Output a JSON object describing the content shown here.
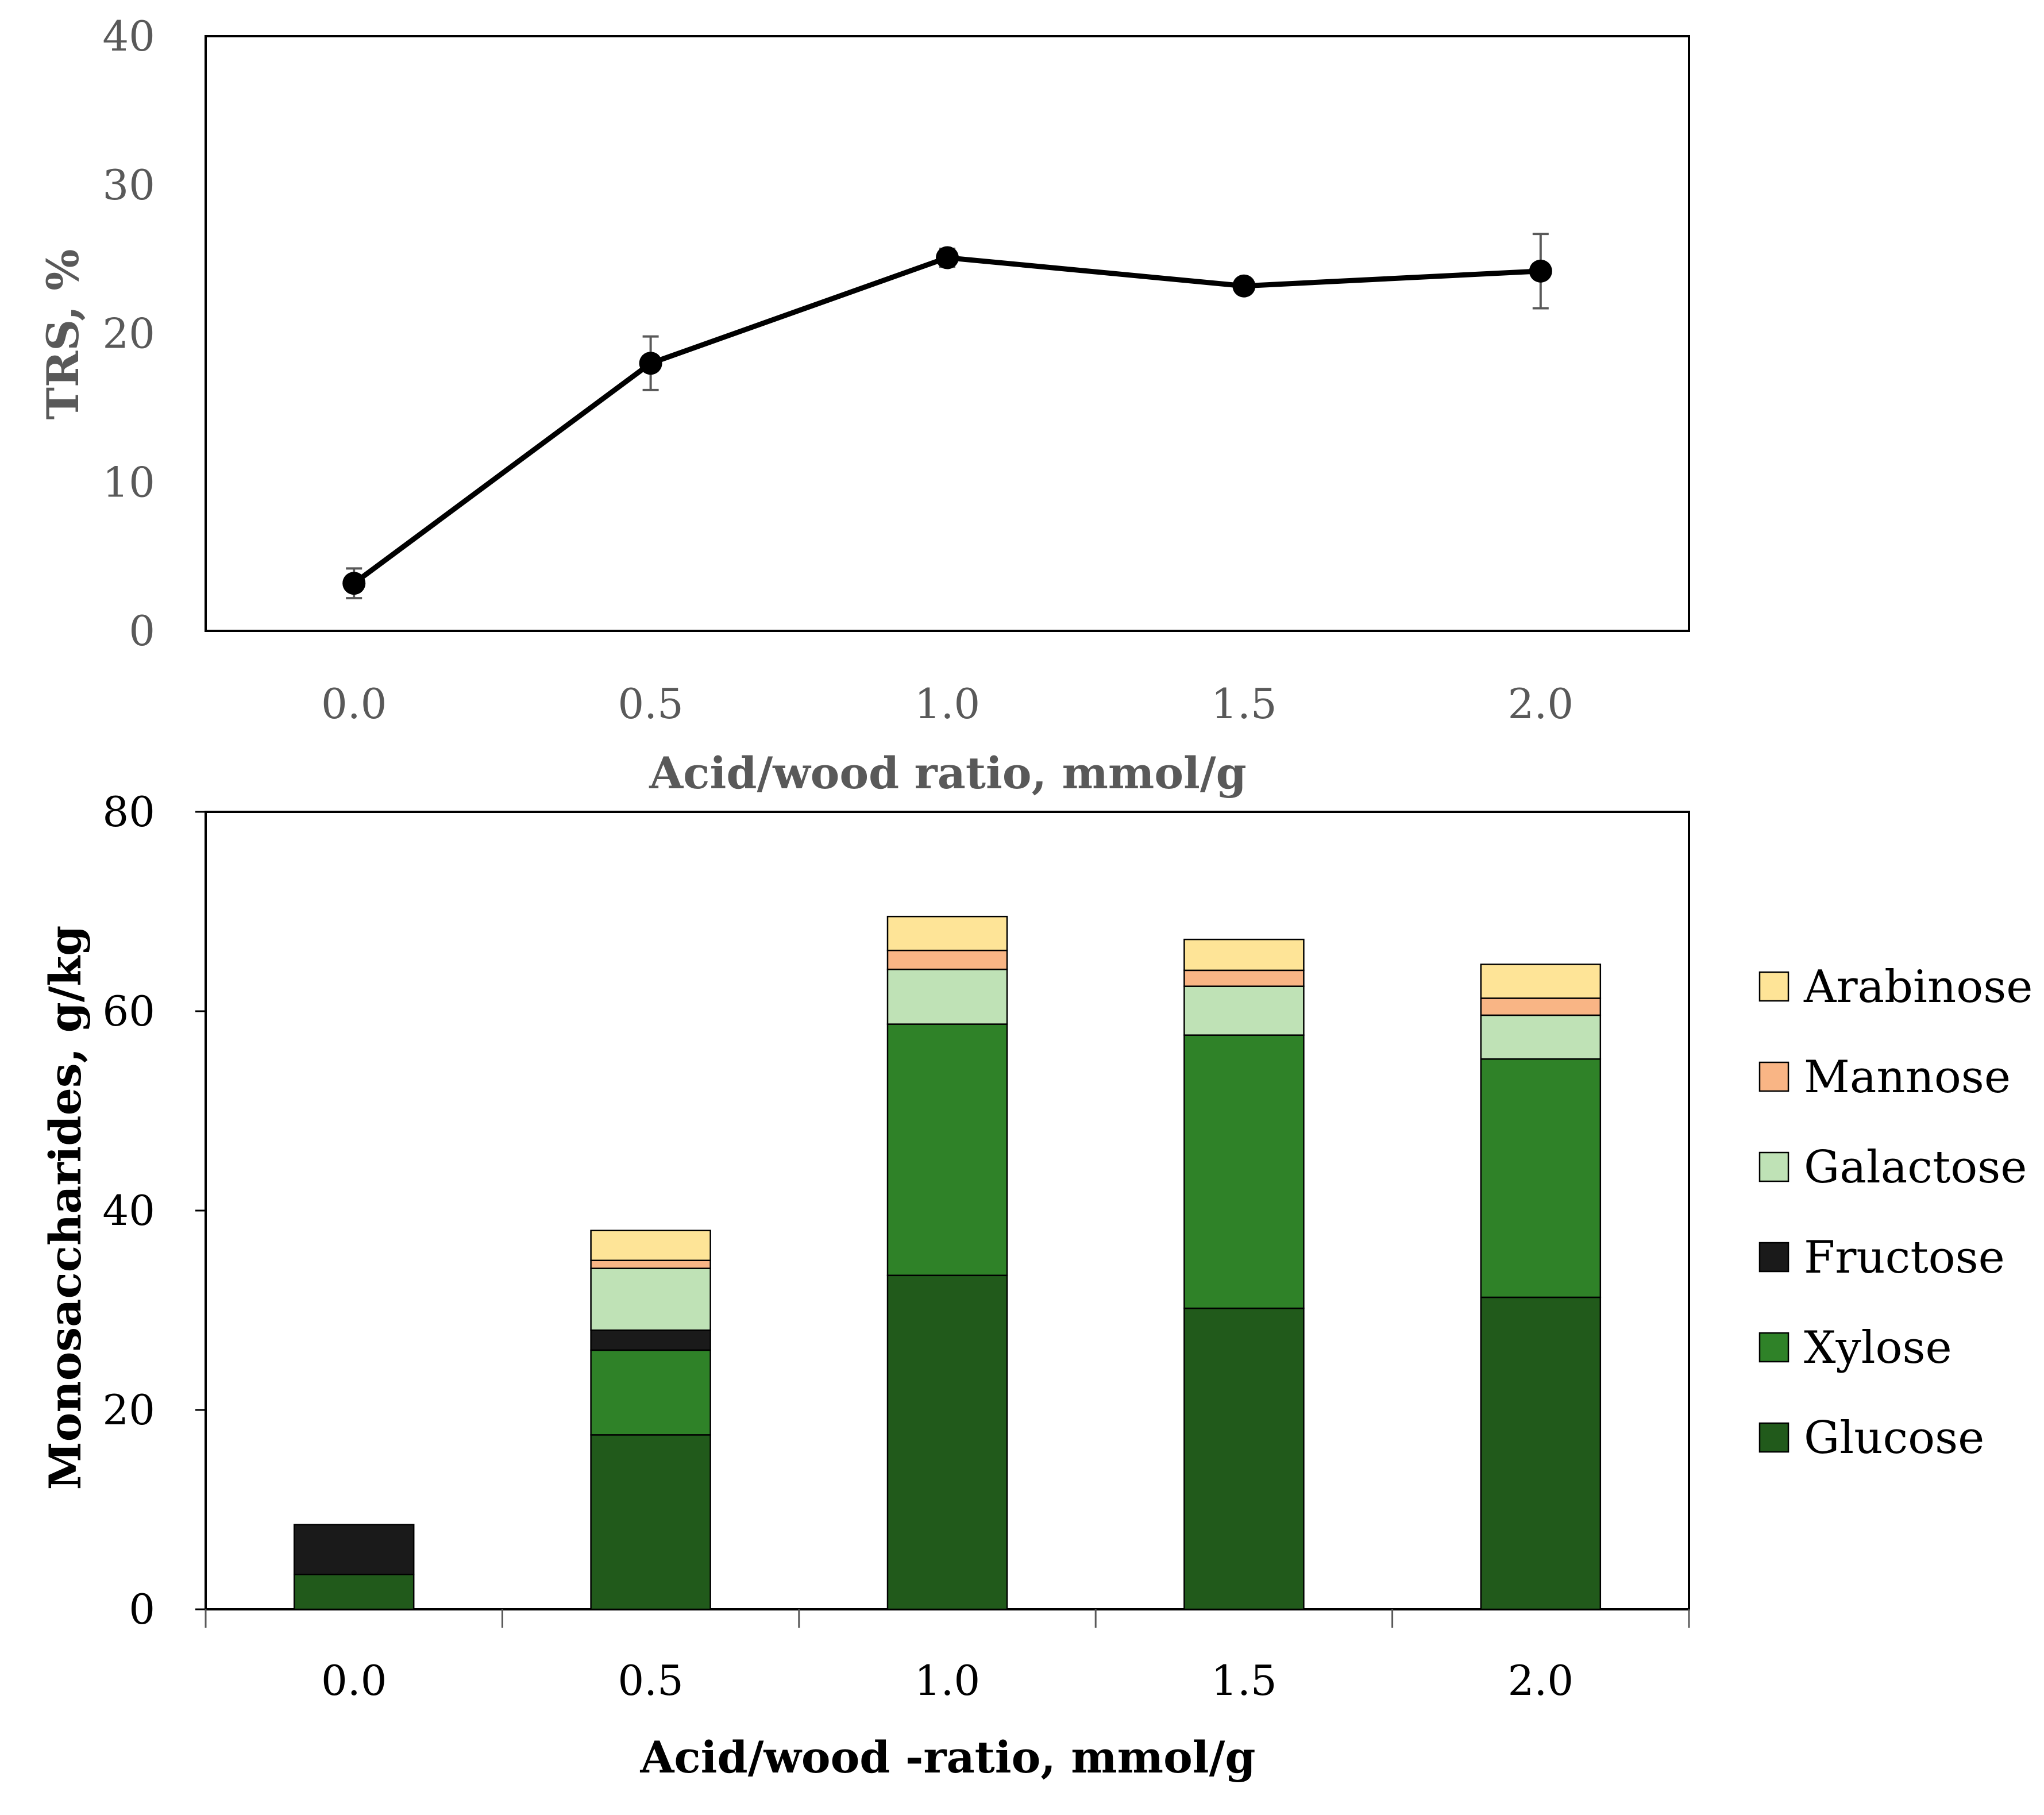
{
  "chart_data": [
    {
      "type": "line",
      "x": [
        0.0,
        0.5,
        1.0,
        1.5,
        2.0
      ],
      "x_tick_labels": [
        "0.0",
        "0.5",
        "1.0",
        "1.5",
        "2.0"
      ],
      "y": [
        3.2,
        18.0,
        25.1,
        23.2,
        24.2
      ],
      "y_err": [
        1.0,
        1.8,
        0.6,
        0.2,
        2.5
      ],
      "y_ticks": [
        "0",
        "10",
        "20",
        "30",
        "40"
      ],
      "ylim": [
        0,
        40
      ],
      "xlabel": "Acid/wood ratio, mmol/g",
      "ylabel": "TRS, %",
      "line_color": "#000000"
    },
    {
      "type": "bar",
      "stacked": true,
      "categories": [
        "0.0",
        "0.5",
        "1.0",
        "1.5",
        "2.0"
      ],
      "series": [
        {
          "name": "Glucose",
          "color": "#215a1b",
          "values": [
            3.5,
            17.5,
            33.5,
            30.2,
            31.3
          ]
        },
        {
          "name": "Xylose",
          "color": "#2f8228",
          "values": [
            0.0,
            8.5,
            25.2,
            27.4,
            23.9
          ]
        },
        {
          "name": "Fructose",
          "color": "#1a1a1a",
          "values": [
            5.0,
            2.0,
            0.0,
            0.0,
            0.0
          ]
        },
        {
          "name": "Galactose",
          "color": "#bfe2b6",
          "values": [
            0.0,
            6.2,
            5.5,
            4.9,
            4.4
          ]
        },
        {
          "name": "Mannose",
          "color": "#f9b585",
          "values": [
            0.0,
            0.8,
            1.9,
            1.6,
            1.7
          ]
        },
        {
          "name": "Arabinose",
          "color": "#fee497",
          "values": [
            0.0,
            3.0,
            3.4,
            3.1,
            3.4
          ]
        }
      ],
      "y_ticks": [
        "0",
        "20",
        "40",
        "60",
        "80"
      ],
      "ylim": [
        0,
        80
      ],
      "xlabel": "Acid/wood -ratio, mmol/g",
      "ylabel": "Monosaccharides, g/kg",
      "legend_position": "right",
      "legend_order": [
        "Arabinose",
        "Mannose",
        "Galactose",
        "Fructose",
        "Xylose",
        "Glucose"
      ]
    }
  ]
}
